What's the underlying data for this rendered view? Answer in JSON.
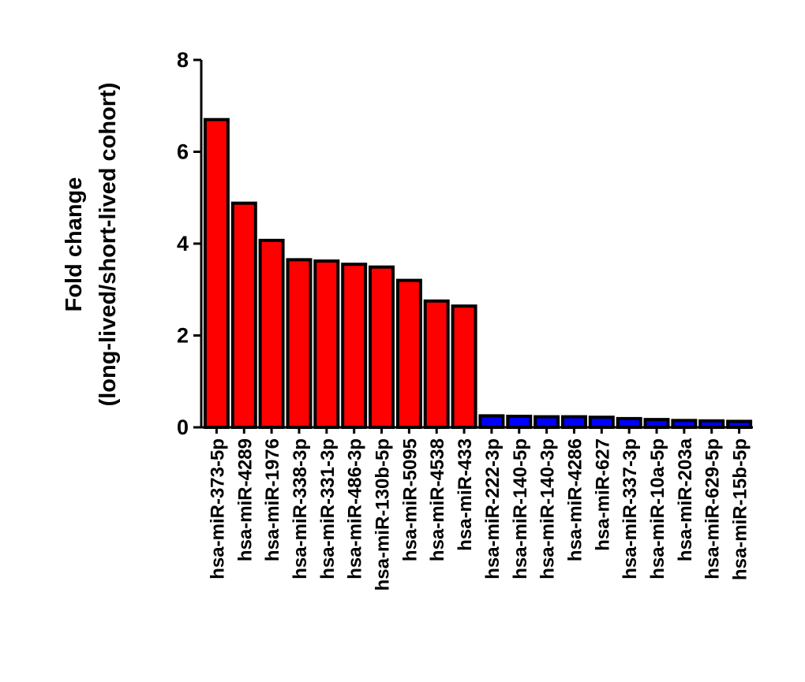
{
  "chart_data": {
    "type": "bar",
    "title": "",
    "xlabel": "",
    "ylabel": "Fold change",
    "ylabel_line2": "(long-lived/short-lived cohort)",
    "ylim": [
      0,
      8
    ],
    "yticks": [
      0,
      2,
      4,
      6,
      8
    ],
    "grid": false,
    "legend": "none",
    "categories": [
      "hsa-miR-373-5p",
      "hsa-miR-4289",
      "hsa-miR-1976",
      "hsa-miR-338-3p",
      "hsa-miR-331-3p",
      "hsa-miR-486-3p",
      "hsa-miR-130b-5p",
      "hsa-miR-5095",
      "hsa-miR-4538",
      "hsa-miR-433",
      "hsa-miR-222-3p",
      "hsa-miR-140-5p",
      "hsa-miR-140-3p",
      "hsa-miR-4286",
      "hsa-miR-627",
      "hsa-miR-337-3p",
      "hsa-miR-10a-5p",
      "hsa-miR-203a",
      "hsa-miR-629-5p",
      "hsa-miR-15b-5p"
    ],
    "values": [
      6.7,
      4.88,
      4.07,
      3.65,
      3.62,
      3.55,
      3.49,
      3.2,
      2.75,
      2.64,
      0.25,
      0.24,
      0.23,
      0.23,
      0.22,
      0.19,
      0.17,
      0.15,
      0.14,
      0.13
    ],
    "bar_colors": [
      "#ff0000",
      "#ff0000",
      "#ff0000",
      "#ff0000",
      "#ff0000",
      "#ff0000",
      "#ff0000",
      "#ff0000",
      "#ff0000",
      "#ff0000",
      "#0000ff",
      "#0000ff",
      "#0000ff",
      "#0000ff",
      "#0000ff",
      "#0000ff",
      "#0000ff",
      "#0000ff",
      "#0000ff",
      "#0000ff"
    ],
    "bar_outline": "#000000"
  }
}
